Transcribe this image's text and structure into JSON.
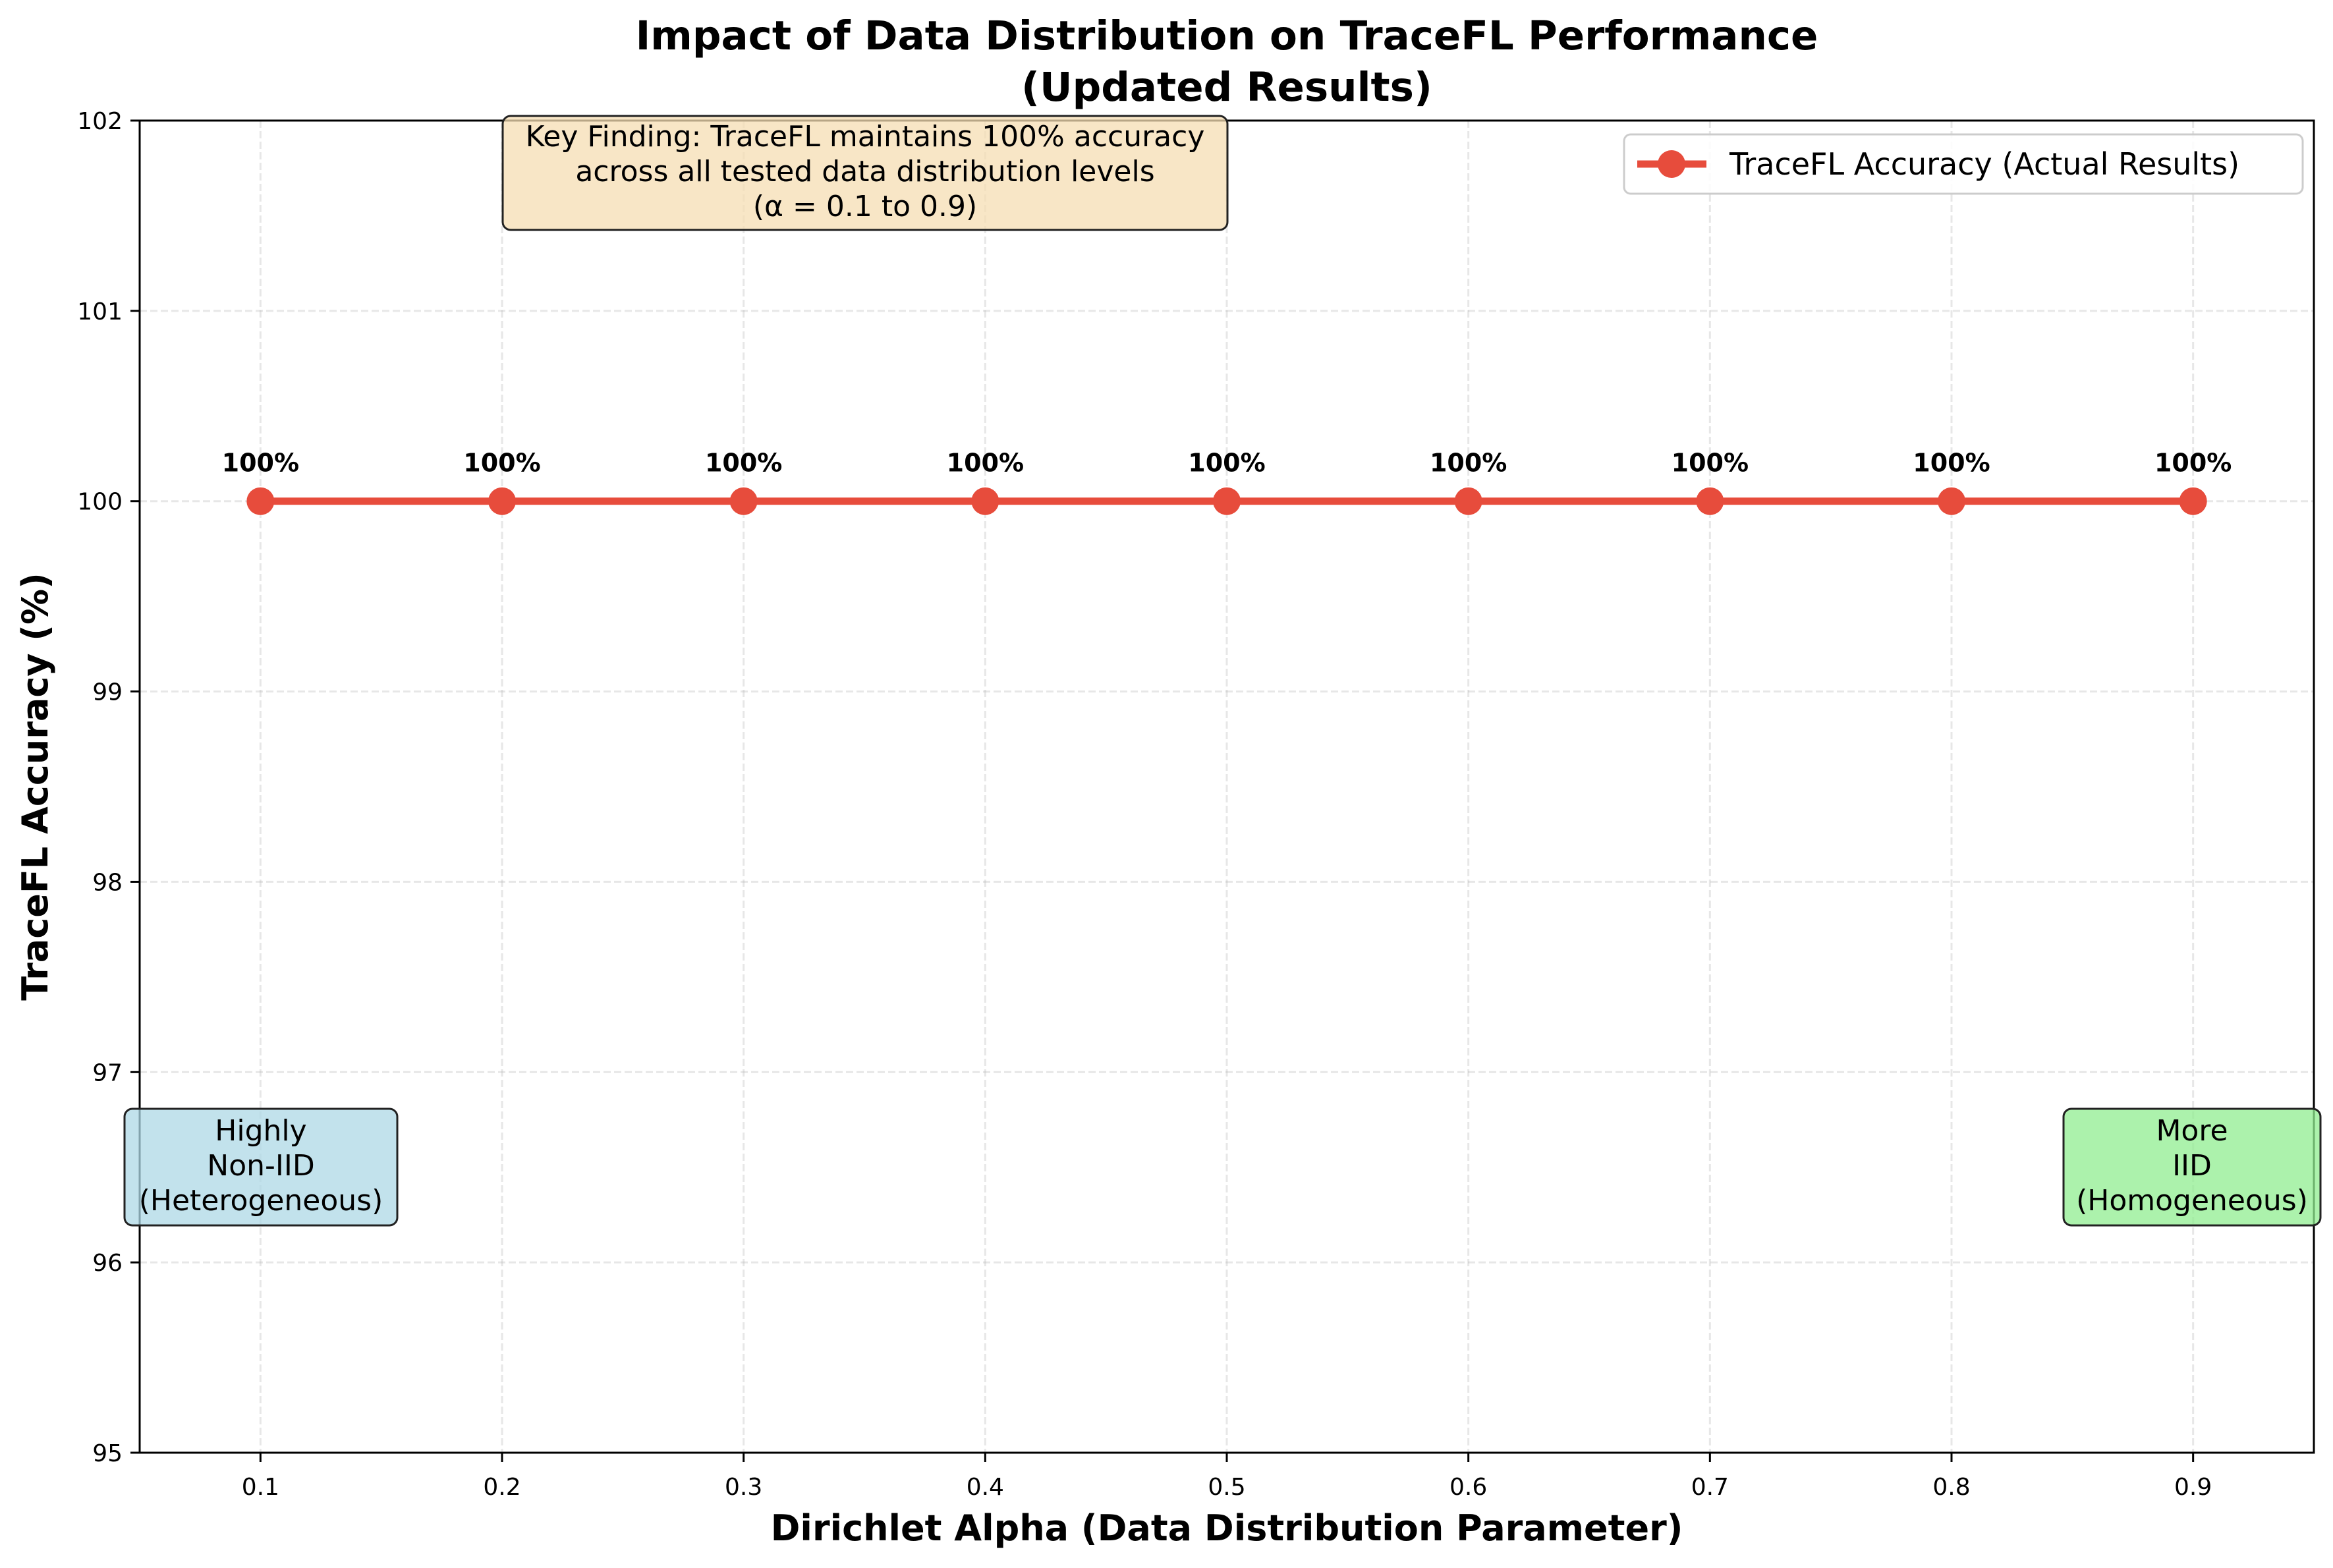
{
  "chart_data": {
    "type": "line",
    "title_line1": "Impact of Data Distribution on TraceFL Performance",
    "title_line2": "(Updated Results)",
    "xlabel": "Dirichlet Alpha (Data Distribution Parameter)",
    "ylabel": "TraceFL Accuracy (%)",
    "xlim": [
      0.05,
      0.95
    ],
    "ylim": [
      95,
      102
    ],
    "xticks": [
      0.1,
      0.2,
      0.3,
      0.4,
      0.5,
      0.6,
      0.7,
      0.8,
      0.9
    ],
    "xtick_labels": [
      "0.1",
      "0.2",
      "0.3",
      "0.4",
      "0.5",
      "0.6",
      "0.7",
      "0.8",
      "0.9"
    ],
    "yticks": [
      95,
      96,
      97,
      98,
      99,
      100,
      101,
      102
    ],
    "ytick_labels": [
      "95",
      "96",
      "97",
      "98",
      "99",
      "100",
      "101",
      "102"
    ],
    "grid": true,
    "legend_position": "top-right",
    "series": [
      {
        "name": "TraceFL Accuracy (Actual Results)",
        "color": "#e74c3c",
        "x": [
          0.1,
          0.2,
          0.3,
          0.4,
          0.5,
          0.6,
          0.7,
          0.8,
          0.9
        ],
        "y": [
          100,
          100,
          100,
          100,
          100,
          100,
          100,
          100,
          100
        ],
        "point_labels": [
          "100%",
          "100%",
          "100%",
          "100%",
          "100%",
          "100%",
          "100%",
          "100%",
          "100%"
        ]
      }
    ],
    "annotations": [
      {
        "id": "key-finding",
        "lines": [
          "Key Finding: TraceFL maintains 100% accuracy",
          "across all tested data distribution levels",
          "(α = 0.1 to 0.9)"
        ],
        "anchor_x": 0.3,
        "anchor_y": 101.65,
        "fill": "#f5deb3"
      },
      {
        "id": "non-iid",
        "lines": [
          "Highly",
          "Non-IID",
          "(Heterogeneous)"
        ],
        "anchor_x": 0.1,
        "anchor_y": 96.5,
        "fill": "#add8e6"
      },
      {
        "id": "iid",
        "lines": [
          "More",
          "IID",
          "(Homogeneous)"
        ],
        "anchor_x": 0.9,
        "anchor_y": 96.5,
        "fill": "#90ee90"
      }
    ]
  }
}
